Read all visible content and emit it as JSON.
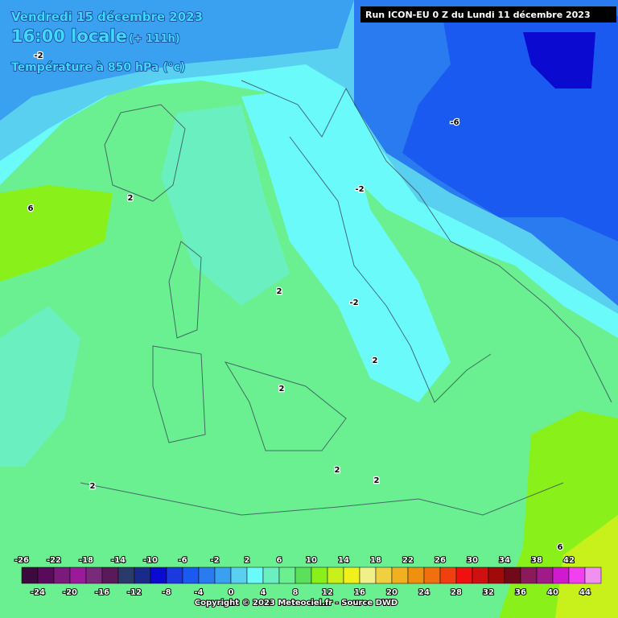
{
  "header": {
    "date": "Vendredi 15 décembre 2023",
    "time": "16:00 locale",
    "lead": "(+ 111h)",
    "field": "Température à 850 hPa (°c)",
    "run": "Run ICON-EU 0 Z du Lundi 11 décembre 2023"
  },
  "map": {
    "contour_labels": [
      "-2",
      "-6",
      "-2",
      "2",
      "6",
      "2",
      "-2",
      "2",
      "2",
      "2",
      "2",
      "2",
      "6"
    ]
  },
  "legend": {
    "values": [
      -26,
      -24,
      -22,
      -20,
      -18,
      -16,
      -14,
      -12,
      -10,
      -8,
      -6,
      -4,
      -2,
      0,
      2,
      4,
      6,
      8,
      10,
      12,
      14,
      16,
      18,
      20,
      22,
      24,
      26,
      28,
      30,
      32,
      34,
      36,
      38,
      40,
      42,
      44
    ],
    "colors": [
      "#3c0a3c",
      "#5a0a5a",
      "#7a1a7a",
      "#9a1a9a",
      "#7a2a7a",
      "#5a1a5a",
      "#2a3a6a",
      "#1a2a8a",
      "#0a0ad0",
      "#1a3ae0",
      "#1a5af0",
      "#2a7af0",
      "#3aa0f0",
      "#5ad0f0",
      "#6afafa",
      "#6af0c0",
      "#6af090",
      "#5ae05a",
      "#8af01a",
      "#c8f01a",
      "#f0f01a",
      "#f0f08a",
      "#f0d040",
      "#f0b020",
      "#f09010",
      "#f07010",
      "#f04010",
      "#f01010",
      "#d01010",
      "#a00a0a",
      "#700a1a",
      "#8a1a5a",
      "#a01a8a",
      "#d01ad0",
      "#f040f0",
      "#f090f0"
    ]
  },
  "footer": {
    "copyright": "Copyright © 2023 Meteociel.fr - Source DWD"
  }
}
